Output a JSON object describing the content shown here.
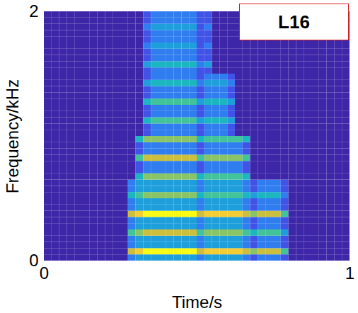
{
  "chart_data": {
    "type": "heatmap",
    "xlabel": "Time/s",
    "ylabel": "Frequency/kHz",
    "annotation": "L16",
    "xlim": [
      0,
      1
    ],
    "ylim": [
      0,
      2
    ],
    "xticks": [
      0,
      1
    ],
    "yticks": [
      0,
      2
    ],
    "zlim": [
      0,
      9
    ],
    "x_edges": [
      0,
      0.025,
      0.05,
      0.075,
      0.1,
      0.125,
      0.15,
      0.175,
      0.2,
      0.225,
      0.25,
      0.275,
      0.3,
      0.325,
      0.35,
      0.375,
      0.4,
      0.425,
      0.45,
      0.475,
      0.5,
      0.525,
      0.55,
      0.575,
      0.6,
      0.625,
      0.65,
      0.675,
      0.7,
      0.725,
      0.75,
      0.775,
      0.8,
      0.825,
      0.85,
      0.875,
      0.9,
      0.925,
      0.95,
      0.975,
      1
    ],
    "y_edges": [
      0,
      0.05,
      0.1,
      0.15,
      0.2,
      0.25,
      0.3,
      0.35,
      0.4,
      0.45,
      0.5,
      0.55,
      0.6,
      0.65,
      0.7,
      0.75,
      0.8,
      0.85,
      0.9,
      0.95,
      1,
      1.05,
      1.1,
      1.15,
      1.2,
      1.25,
      1.3,
      1.35,
      1.4,
      1.45,
      1.5,
      1.55,
      1.6,
      1.65,
      1.7,
      1.75,
      1.8,
      1.85,
      1.9,
      1.95,
      2
    ],
    "cells": [
      [
        0,
        0,
        0,
        0,
        0,
        0,
        0,
        0,
        0,
        0,
        0,
        2,
        3,
        3,
        3,
        3,
        3,
        3,
        3,
        3,
        2,
        3,
        3,
        3,
        3,
        3,
        2,
        1,
        2,
        2,
        2,
        1,
        0,
        0,
        0,
        0,
        0,
        0,
        0,
        0
      ],
      [
        0,
        0,
        0,
        0,
        0,
        0,
        0,
        0,
        0,
        0,
        0,
        7,
        8,
        9,
        9,
        9,
        9,
        9,
        9,
        9,
        7,
        8,
        8,
        8,
        8,
        8,
        7,
        6,
        7,
        7,
        7,
        5,
        0,
        0,
        0,
        0,
        0,
        0,
        0,
        0
      ],
      [
        0,
        0,
        0,
        0,
        0,
        0,
        0,
        0,
        0,
        0,
        0,
        2,
        3,
        3,
        3,
        3,
        3,
        3,
        3,
        3,
        2,
        3,
        3,
        3,
        3,
        3,
        2,
        1,
        2,
        2,
        2,
        1,
        0,
        0,
        0,
        0,
        0,
        0,
        0,
        0
      ],
      [
        0,
        0,
        0,
        0,
        0,
        0,
        0,
        0,
        0,
        0,
        0,
        2,
        3,
        3,
        3,
        3,
        3,
        3,
        3,
        3,
        2,
        3,
        3,
        3,
        3,
        3,
        2,
        1,
        2,
        2,
        2,
        1,
        0,
        0,
        0,
        0,
        0,
        0,
        0,
        0
      ],
      [
        0,
        0,
        0,
        0,
        0,
        0,
        0,
        0,
        0,
        0,
        0,
        5,
        6,
        7,
        7,
        7,
        7,
        7,
        7,
        7,
        5,
        6,
        6,
        6,
        6,
        6,
        5,
        4,
        5,
        5,
        5,
        3,
        0,
        0,
        0,
        0,
        0,
        0,
        0,
        0
      ],
      [
        0,
        0,
        0,
        0,
        0,
        0,
        0,
        0,
        0,
        0,
        0,
        2,
        3,
        3,
        3,
        3,
        3,
        3,
        3,
        3,
        2,
        3,
        3,
        3,
        3,
        3,
        2,
        1,
        2,
        2,
        2,
        1,
        0,
        0,
        0,
        0,
        0,
        0,
        0,
        0
      ],
      [
        0,
        0,
        0,
        0,
        0,
        0,
        0,
        0,
        0,
        0,
        0,
        2,
        3,
        3,
        3,
        3,
        3,
        3,
        3,
        3,
        2,
        3,
        3,
        3,
        3,
        3,
        2,
        1,
        2,
        2,
        2,
        1,
        0,
        0,
        0,
        0,
        0,
        0,
        0,
        0
      ],
      [
        0,
        0,
        0,
        0,
        0,
        0,
        0,
        0,
        0,
        0,
        0,
        7,
        8,
        9,
        9,
        9,
        9,
        9,
        9,
        9,
        7,
        8,
        8,
        8,
        8,
        8,
        7,
        6,
        7,
        7,
        7,
        5,
        0,
        0,
        0,
        0,
        0,
        0,
        0,
        0
      ],
      [
        0,
        0,
        0,
        0,
        0,
        0,
        0,
        0,
        0,
        0,
        0,
        2,
        3,
        3,
        3,
        3,
        3,
        3,
        3,
        3,
        2,
        3,
        3,
        3,
        3,
        3,
        2,
        1,
        2,
        2,
        2,
        1,
        0,
        0,
        0,
        0,
        0,
        0,
        0,
        0
      ],
      [
        0,
        0,
        0,
        0,
        0,
        0,
        0,
        0,
        0,
        0,
        0,
        2,
        3,
        3,
        3,
        3,
        3,
        3,
        3,
        3,
        2,
        3,
        3,
        3,
        3,
        3,
        2,
        1,
        2,
        2,
        2,
        1,
        0,
        0,
        0,
        0,
        0,
        0,
        0,
        0
      ],
      [
        0,
        0,
        0,
        0,
        0,
        0,
        0,
        0,
        0,
        0,
        0,
        4,
        5,
        6,
        6,
        6,
        6,
        6,
        6,
        6,
        4,
        5,
        5,
        5,
        5,
        5,
        4,
        3,
        4,
        4,
        4,
        2,
        0,
        0,
        0,
        0,
        0,
        0,
        0,
        0
      ],
      [
        0,
        0,
        0,
        0,
        0,
        0,
        0,
        0,
        0,
        0,
        0,
        2,
        3,
        3,
        3,
        3,
        3,
        3,
        3,
        3,
        2,
        3,
        3,
        3,
        3,
        3,
        2,
        1,
        2,
        2,
        2,
        1,
        0,
        0,
        0,
        0,
        0,
        0,
        0,
        0
      ],
      [
        0,
        0,
        0,
        0,
        0,
        0,
        0,
        0,
        0,
        0,
        0,
        2,
        3,
        3,
        3,
        3,
        3,
        3,
        3,
        3,
        2,
        3,
        3,
        3,
        3,
        3,
        2,
        1,
        2,
        2,
        2,
        1,
        0,
        0,
        0,
        0,
        0,
        0,
        0,
        0
      ],
      [
        0,
        0,
        0,
        0,
        0,
        0,
        0,
        0,
        0,
        0,
        0,
        0,
        4,
        6,
        6,
        6,
        6,
        6,
        6,
        6,
        4,
        5,
        5,
        5,
        5,
        5,
        4,
        0,
        0,
        0,
        0,
        0,
        0,
        0,
        0,
        0,
        0,
        0,
        0,
        0
      ],
      [
        0,
        0,
        0,
        0,
        0,
        0,
        0,
        0,
        0,
        0,
        0,
        0,
        1,
        2,
        2,
        2,
        2,
        2,
        2,
        2,
        1,
        2,
        2,
        2,
        2,
        2,
        1,
        0,
        0,
        0,
        0,
        0,
        0,
        0,
        0,
        0,
        0,
        0,
        0,
        0
      ],
      [
        0,
        0,
        0,
        0,
        0,
        0,
        0,
        0,
        0,
        0,
        0,
        0,
        1,
        2,
        2,
        2,
        2,
        2,
        2,
        2,
        1,
        2,
        2,
        2,
        2,
        2,
        1,
        0,
        0,
        0,
        0,
        0,
        0,
        0,
        0,
        0,
        0,
        0,
        0,
        0
      ],
      [
        0,
        0,
        0,
        0,
        0,
        0,
        0,
        0,
        0,
        0,
        0,
        0,
        5,
        7,
        7,
        7,
        7,
        7,
        7,
        7,
        5,
        6,
        6,
        6,
        6,
        6,
        5,
        0,
        0,
        0,
        0,
        0,
        0,
        0,
        0,
        0,
        0,
        0,
        0,
        0
      ],
      [
        0,
        0,
        0,
        0,
        0,
        0,
        0,
        0,
        0,
        0,
        0,
        0,
        1,
        2,
        2,
        2,
        2,
        2,
        2,
        2,
        1,
        2,
        2,
        2,
        2,
        2,
        1,
        0,
        0,
        0,
        0,
        0,
        0,
        0,
        0,
        0,
        0,
        0,
        0,
        0
      ],
      [
        0,
        0,
        0,
        0,
        0,
        0,
        0,
        0,
        0,
        0,
        0,
        0,
        1,
        2,
        2,
        2,
        2,
        2,
        2,
        2,
        1,
        2,
        2,
        2,
        2,
        2,
        1,
        0,
        0,
        0,
        0,
        0,
        0,
        0,
        0,
        0,
        0,
        0,
        0,
        0
      ],
      [
        0,
        0,
        0,
        0,
        0,
        0,
        0,
        0,
        0,
        0,
        0,
        0,
        4,
        6,
        6,
        6,
        6,
        6,
        6,
        6,
        4,
        5,
        5,
        5,
        5,
        5,
        4,
        0,
        0,
        0,
        0,
        0,
        0,
        0,
        0,
        0,
        0,
        0,
        0,
        0
      ],
      [
        0,
        0,
        0,
        0,
        0,
        0,
        0,
        0,
        0,
        0,
        0,
        0,
        0,
        1,
        2,
        2,
        2,
        2,
        2,
        2,
        1,
        2,
        2,
        2,
        1,
        0,
        0,
        0,
        0,
        0,
        0,
        0,
        0,
        0,
        0,
        0,
        0,
        0,
        0,
        0
      ],
      [
        0,
        0,
        0,
        0,
        0,
        0,
        0,
        0,
        0,
        0,
        0,
        0,
        0,
        1,
        2,
        2,
        2,
        2,
        2,
        2,
        1,
        2,
        2,
        2,
        1,
        0,
        0,
        0,
        0,
        0,
        0,
        0,
        0,
        0,
        0,
        0,
        0,
        0,
        0,
        0
      ],
      [
        0,
        0,
        0,
        0,
        0,
        0,
        0,
        0,
        0,
        0,
        0,
        0,
        0,
        4,
        5,
        5,
        5,
        5,
        5,
        5,
        3,
        4,
        4,
        4,
        3,
        0,
        0,
        0,
        0,
        0,
        0,
        0,
        0,
        0,
        0,
        0,
        0,
        0,
        0,
        0
      ],
      [
        0,
        0,
        0,
        0,
        0,
        0,
        0,
        0,
        0,
        0,
        0,
        0,
        0,
        1,
        2,
        2,
        2,
        2,
        2,
        2,
        1,
        2,
        2,
        2,
        1,
        0,
        0,
        0,
        0,
        0,
        0,
        0,
        0,
        0,
        0,
        0,
        0,
        0,
        0,
        0
      ],
      [
        0,
        0,
        0,
        0,
        0,
        0,
        0,
        0,
        0,
        0,
        0,
        0,
        0,
        1,
        2,
        2,
        2,
        2,
        2,
        2,
        1,
        2,
        2,
        2,
        1,
        0,
        0,
        0,
        0,
        0,
        0,
        0,
        0,
        0,
        0,
        0,
        0,
        0,
        0,
        0
      ],
      [
        0,
        0,
        0,
        0,
        0,
        0,
        0,
        0,
        0,
        0,
        0,
        0,
        0,
        4,
        5,
        5,
        5,
        5,
        5,
        5,
        3,
        4,
        4,
        4,
        3,
        0,
        0,
        0,
        0,
        0,
        0,
        0,
        0,
        0,
        0,
        0,
        0,
        0,
        0,
        0
      ],
      [
        0,
        0,
        0,
        0,
        0,
        0,
        0,
        0,
        0,
        0,
        0,
        0,
        0,
        1,
        2,
        2,
        2,
        2,
        2,
        2,
        1,
        2,
        2,
        2,
        1,
        0,
        0,
        0,
        0,
        0,
        0,
        0,
        0,
        0,
        0,
        0,
        0,
        0,
        0,
        0
      ],
      [
        0,
        0,
        0,
        0,
        0,
        0,
        0,
        0,
        0,
        0,
        0,
        0,
        0,
        1,
        2,
        2,
        2,
        2,
        2,
        2,
        1,
        2,
        2,
        2,
        1,
        0,
        0,
        0,
        0,
        0,
        0,
        0,
        0,
        0,
        0,
        0,
        0,
        0,
        0,
        0
      ],
      [
        0,
        0,
        0,
        0,
        0,
        0,
        0,
        0,
        0,
        0,
        0,
        0,
        0,
        3,
        4,
        4,
        4,
        4,
        4,
        4,
        2,
        3,
        3,
        3,
        2,
        0,
        0,
        0,
        0,
        0,
        0,
        0,
        0,
        0,
        0,
        0,
        0,
        0,
        0,
        0
      ],
      [
        0,
        0,
        0,
        0,
        0,
        0,
        0,
        0,
        0,
        0,
        0,
        0,
        0,
        1,
        2,
        2,
        2,
        2,
        2,
        2,
        1,
        2,
        2,
        2,
        1,
        0,
        0,
        0,
        0,
        0,
        0,
        0,
        0,
        0,
        0,
        0,
        0,
        0,
        0,
        0
      ],
      [
        0,
        0,
        0,
        0,
        0,
        0,
        0,
        0,
        0,
        0,
        0,
        0,
        0,
        1,
        2,
        2,
        2,
        2,
        2,
        2,
        1,
        1,
        0,
        0,
        0,
        0,
        0,
        0,
        0,
        0,
        0,
        0,
        0,
        0,
        0,
        0,
        0,
        0,
        0,
        0
      ],
      [
        0,
        0,
        0,
        0,
        0,
        0,
        0,
        0,
        0,
        0,
        0,
        0,
        0,
        3,
        4,
        4,
        4,
        4,
        4,
        4,
        2,
        3,
        0,
        0,
        0,
        0,
        0,
        0,
        0,
        0,
        0,
        0,
        0,
        0,
        0,
        0,
        0,
        0,
        0,
        0
      ],
      [
        0,
        0,
        0,
        0,
        0,
        0,
        0,
        0,
        0,
        0,
        0,
        0,
        0,
        1,
        2,
        2,
        2,
        2,
        2,
        2,
        1,
        1,
        0,
        0,
        0,
        0,
        0,
        0,
        0,
        0,
        0,
        0,
        0,
        0,
        0,
        0,
        0,
        0,
        0,
        0
      ],
      [
        0,
        0,
        0,
        0,
        0,
        0,
        0,
        0,
        0,
        0,
        0,
        0,
        0,
        1,
        2,
        2,
        2,
        2,
        2,
        2,
        1,
        1,
        0,
        0,
        0,
        0,
        0,
        0,
        0,
        0,
        0,
        0,
        0,
        0,
        0,
        0,
        0,
        0,
        0,
        0
      ],
      [
        0,
        0,
        0,
        0,
        0,
        0,
        0,
        0,
        0,
        0,
        0,
        0,
        0,
        2,
        3,
        3,
        3,
        3,
        3,
        3,
        1,
        2,
        0,
        0,
        0,
        0,
        0,
        0,
        0,
        0,
        0,
        0,
        0,
        0,
        0,
        0,
        0,
        0,
        0,
        0
      ],
      [
        0,
        0,
        0,
        0,
        0,
        0,
        0,
        0,
        0,
        0,
        0,
        0,
        0,
        1,
        2,
        2,
        2,
        2,
        2,
        2,
        1,
        1,
        0,
        0,
        0,
        0,
        0,
        0,
        0,
        0,
        0,
        0,
        0,
        0,
        0,
        0,
        0,
        0,
        0,
        0
      ],
      [
        0,
        0,
        0,
        0,
        0,
        0,
        0,
        0,
        0,
        0,
        0,
        0,
        0,
        1,
        2,
        2,
        2,
        2,
        2,
        2,
        1,
        1,
        0,
        0,
        0,
        0,
        0,
        0,
        0,
        0,
        0,
        0,
        0,
        0,
        0,
        0,
        0,
        0,
        0,
        0
      ],
      [
        0,
        0,
        0,
        0,
        0,
        0,
        0,
        0,
        0,
        0,
        0,
        0,
        0,
        2,
        3,
        3,
        3,
        3,
        3,
        3,
        1,
        2,
        0,
        0,
        0,
        0,
        0,
        0,
        0,
        0,
        0,
        0,
        0,
        0,
        0,
        0,
        0,
        0,
        0,
        0
      ],
      [
        0,
        0,
        0,
        0,
        0,
        0,
        0,
        0,
        0,
        0,
        0,
        0,
        0,
        1,
        2,
        2,
        2,
        2,
        2,
        2,
        1,
        1,
        0,
        0,
        0,
        0,
        0,
        0,
        0,
        0,
        0,
        0,
        0,
        0,
        0,
        0,
        0,
        0,
        0,
        0
      ],
      [
        0,
        0,
        0,
        0,
        0,
        0,
        0,
        0,
        0,
        0,
        0,
        0,
        0,
        1,
        2,
        2,
        2,
        2,
        2,
        2,
        1,
        1,
        0,
        0,
        0,
        0,
        0,
        0,
        0,
        0,
        0,
        0,
        0,
        0,
        0,
        0,
        0,
        0,
        0,
        0
      ]
    ]
  }
}
